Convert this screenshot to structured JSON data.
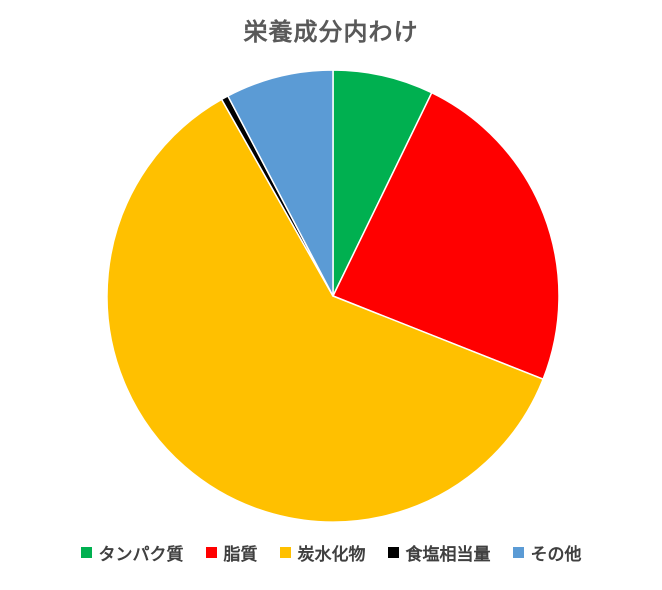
{
  "chart_data": {
    "type": "pie",
    "title": "栄養成分内わけ",
    "categories": [
      "タンパク質",
      "脂質",
      "炭水化物",
      "食塩相当量",
      "その他"
    ],
    "values": [
      7.2,
      23.8,
      60.8,
      0.5,
      7.7
    ],
    "colors": [
      "#00b050",
      "#ff0000",
      "#ffc000",
      "#000000",
      "#5b9bd5"
    ],
    "start_angle_deg": 0,
    "direction": "clockwise",
    "slice_border_color": "#ffffff",
    "legend_position": "bottom"
  }
}
